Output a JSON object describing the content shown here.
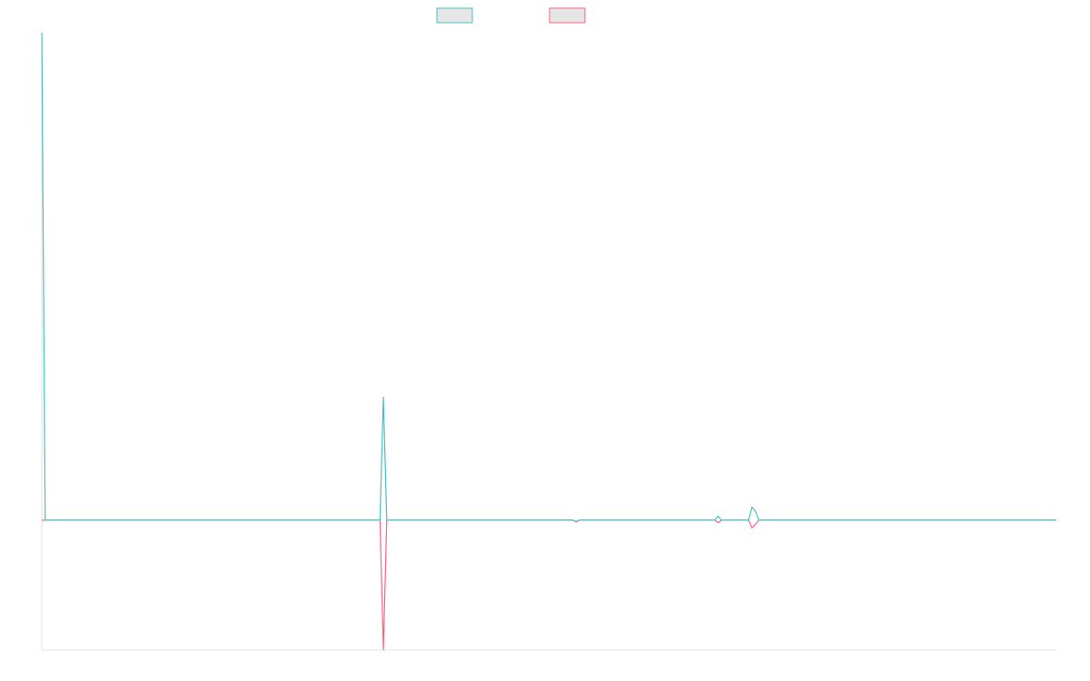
{
  "chart_data": {
    "type": "line",
    "title": "",
    "xlabel": "",
    "ylabel": "",
    "legend": "top-center",
    "grid": false,
    "ylim": [
      -100,
      375
    ],
    "xlim": [
      0,
      300
    ],
    "series": [
      {
        "color": "#4bc0c0",
        "fill": "#e6e6e6",
        "points": [
          [
            0,
            375
          ],
          [
            1,
            0
          ],
          [
            100,
            0
          ],
          [
            101,
            95
          ],
          [
            102,
            0
          ],
          [
            157,
            0
          ],
          [
            158,
            -1
          ],
          [
            159,
            0
          ],
          [
            199,
            0
          ],
          [
            200,
            3
          ],
          [
            201,
            0
          ],
          [
            209,
            0
          ],
          [
            210,
            10
          ],
          [
            211,
            7
          ],
          [
            212,
            0
          ],
          [
            300,
            0
          ]
        ]
      },
      {
        "color": "#ff6384",
        "fill": "#e6e6e6",
        "points": [
          [
            0,
            0
          ],
          [
            100,
            0
          ],
          [
            101,
            -100
          ],
          [
            102,
            0
          ],
          [
            157,
            0
          ],
          [
            158,
            -1.5
          ],
          [
            159,
            0
          ],
          [
            199,
            0
          ],
          [
            200,
            -2
          ],
          [
            201,
            0
          ],
          [
            209,
            0
          ],
          [
            210,
            -6
          ],
          [
            211,
            -3
          ],
          [
            212,
            0
          ],
          [
            300,
            0
          ]
        ]
      }
    ]
  }
}
